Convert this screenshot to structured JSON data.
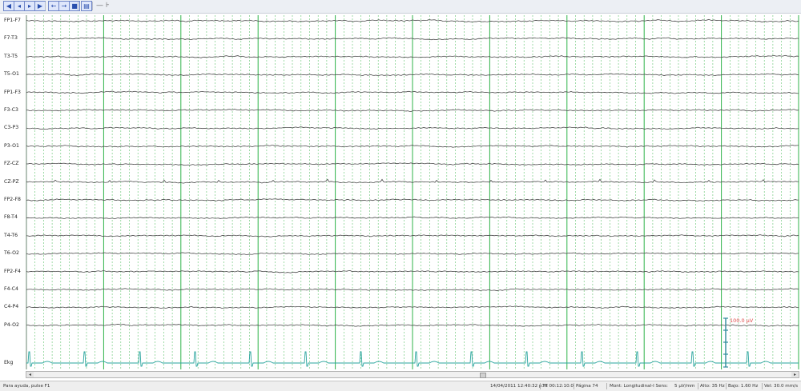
{
  "toolbar": {
    "buttons": [
      {
        "name": "first-page-button",
        "glyph": "◀"
      },
      {
        "name": "prev-page-button",
        "glyph": "◂"
      },
      {
        "name": "next-page-button",
        "glyph": "▸"
      },
      {
        "name": "last-page-button",
        "glyph": "▶"
      },
      {
        "name": "step-back-button",
        "glyph": "←"
      },
      {
        "name": "step-forward-button",
        "glyph": "→"
      },
      {
        "name": "record-button",
        "glyph": "■"
      },
      {
        "name": "montage-button",
        "glyph": "▤"
      }
    ],
    "marker_glyph": "— ⊦"
  },
  "channels": [
    "FP1-F7",
    "F7-T3",
    "T3-T5",
    "T5-O1",
    "FP1-F3",
    "F3-C3",
    "C3-P3",
    "P3-O1",
    "FZ-CZ",
    "CZ-PZ",
    "FP2-F8",
    "F8-T4",
    "T4-T6",
    "T6-O2",
    "FP2-F4",
    "F4-C4",
    "C4-P4",
    "P4-O2"
  ],
  "ekg_label": "Ekg",
  "calibration_label": "100.0 µV",
  "colors": {
    "trace": "#4a4a4a",
    "ekg": "#2aa59e",
    "grid_second": "#2fb34a",
    "grid_sub": "#62c46f",
    "cal": "#2f8c9a",
    "cal_text": "#e04a4a"
  },
  "status": {
    "help": "Para ayuda, pulse F1",
    "datetime": "14/04/2011  12:40:32 p.m",
    "tt": "TT 00:12:10.0",
    "page": "Página 74",
    "montage": "Mont: Longitudinal-I  Sens:",
    "sens": "5 µV/mm",
    "high": "Alto: 35 Hz",
    "low": "Bajo: 1.60 Hz",
    "speed": "Vel: 30.0 mm/s"
  }
}
